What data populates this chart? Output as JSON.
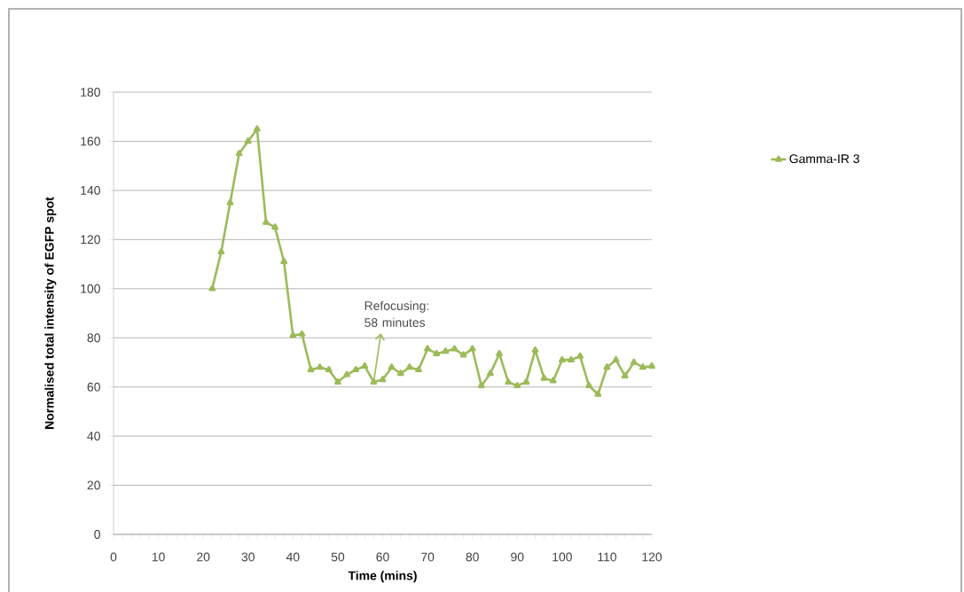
{
  "chart_data": {
    "type": "line",
    "xlabel": "Time (mins)",
    "ylabel": "Normalised total intensity of EGFP spot",
    "x": [
      22,
      24,
      26,
      28,
      30,
      32,
      34,
      36,
      38,
      40,
      42,
      44,
      46,
      48,
      50,
      52,
      54,
      56,
      58,
      60,
      62,
      64,
      66,
      68,
      70,
      72,
      74,
      76,
      78,
      80,
      82,
      84,
      86,
      88,
      90,
      92,
      94,
      96,
      98,
      100,
      102,
      104,
      106,
      108,
      110,
      112,
      114,
      116,
      118,
      120
    ],
    "series": [
      {
        "name": "Gamma-IR 3",
        "color": "#9bbb59",
        "values": [
          100,
          115,
          135,
          155,
          160,
          165,
          127,
          125,
          111,
          81,
          81.5,
          67,
          68,
          67,
          62,
          65,
          67,
          68.5,
          62,
          63,
          68,
          65.5,
          68,
          67,
          75.5,
          73.5,
          74.5,
          75.5,
          73,
          75.5,
          60.5,
          65.5,
          73.5,
          62,
          60.5,
          62,
          75,
          63.5,
          62.5,
          71,
          71,
          72.5,
          60.5,
          57,
          68,
          71,
          64.5,
          70,
          68,
          68.5
        ]
      }
    ],
    "xlim": [
      0,
      120
    ],
    "ylim": [
      0,
      180
    ],
    "xticks": [
      0,
      10,
      20,
      30,
      40,
      50,
      60,
      70,
      80,
      90,
      100,
      110,
      120
    ],
    "yticks": [
      0,
      20,
      40,
      60,
      80,
      100,
      120,
      140,
      160,
      180
    ],
    "annotations": [
      {
        "text": "Refocusing: 58 minutes",
        "x": 58,
        "y": 62
      }
    ],
    "grid": "y",
    "legend": "right",
    "marker": "triangle",
    "line_style": "solid"
  }
}
